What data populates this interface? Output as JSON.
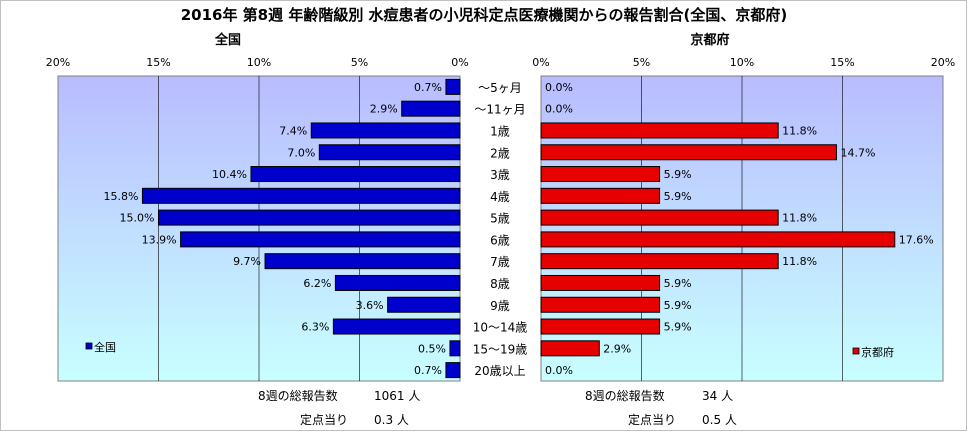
{
  "title": "2016年 第8週 年齢階級別 水痘患者の小児科定点医療機関からの報告割合(全国、京都府)",
  "colors": {
    "national": "#0000cc",
    "kyoto": "#e60000",
    "plot_bg_start": "#b9bcff",
    "plot_bg_end": "#c8ffff"
  },
  "chart_data": [
    {
      "type": "bar",
      "orientation": "horizontal",
      "subtitle": "全国",
      "categories": [
        "～5ヶ月",
        "～11ヶ月",
        "1歳",
        "2歳",
        "3歳",
        "4歳",
        "5歳",
        "6歳",
        "7歳",
        "8歳",
        "9歳",
        "10～14歳",
        "15～19歳",
        "20歳以上"
      ],
      "series": [
        {
          "name": "全国",
          "values": [
            0.7,
            2.9,
            7.4,
            7.0,
            10.4,
            15.8,
            15.0,
            13.9,
            9.7,
            6.2,
            3.6,
            6.3,
            0.5,
            0.7
          ]
        }
      ],
      "data_labels": [
        "0.7%",
        "2.9%",
        "7.4%",
        "7.0%",
        "10.4%",
        "15.8%",
        "15.0%",
        "13.9%",
        "9.7%",
        "6.2%",
        "3.6%",
        "6.3%",
        "0.5%",
        "0.7%"
      ],
      "xlim": [
        0,
        20
      ],
      "x_reversed": true,
      "ticks": [
        "20%",
        "15%",
        "10%",
        "5%",
        "0%"
      ],
      "grid": true,
      "legend": "left"
    },
    {
      "type": "bar",
      "orientation": "horizontal",
      "subtitle": "京都府",
      "categories": [
        "～5ヶ月",
        "～11ヶ月",
        "1歳",
        "2歳",
        "3歳",
        "4歳",
        "5歳",
        "6歳",
        "7歳",
        "8歳",
        "9歳",
        "10～14歳",
        "15～19歳",
        "20歳以上"
      ],
      "series": [
        {
          "name": "京都府",
          "values": [
            0.0,
            0.0,
            11.8,
            14.7,
            5.9,
            5.9,
            11.8,
            17.6,
            11.8,
            5.9,
            5.9,
            5.9,
            2.9,
            0.0
          ]
        }
      ],
      "data_labels": [
        "0.0%",
        "0.0%",
        "11.8%",
        "14.7%",
        "5.9%",
        "5.9%",
        "11.8%",
        "17.6%",
        "11.8%",
        "5.9%",
        "5.9%",
        "5.9%",
        "2.9%",
        "0.0%"
      ],
      "xlim": [
        0,
        20
      ],
      "x_reversed": false,
      "ticks": [
        "0%",
        "5%",
        "10%",
        "15%",
        "20%"
      ],
      "grid": true,
      "legend": "right"
    }
  ],
  "footer": {
    "national_total_label": "8週の総報告数",
    "national_total_value": "1061 人",
    "national_per_label": "定点当り",
    "national_per_value": "0.3 人",
    "kyoto_total_label": "8週の総報告数",
    "kyoto_total_value": "34 人",
    "kyoto_per_label": "定点当り",
    "kyoto_per_value": "0.5 人"
  }
}
